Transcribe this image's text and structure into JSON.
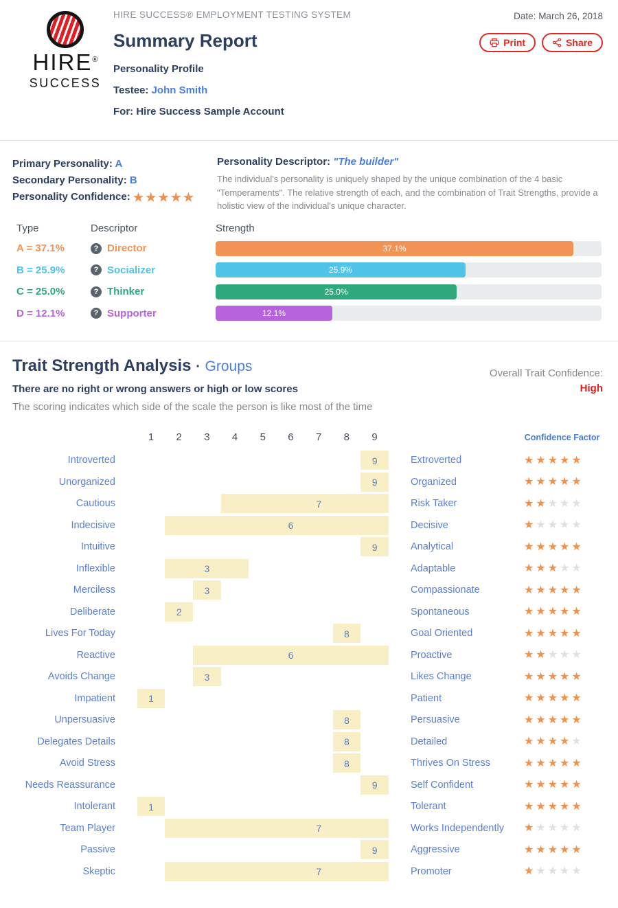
{
  "colors": {
    "accent_red": "#dd2a27",
    "navy_text": "#2d3f5e",
    "link_blue": "#4a7de0",
    "trait_label_blue": "#5a7ed6",
    "star_orange": "#f0914e",
    "star_empty_gray": "#dde1e6",
    "trait_bar_cream": "#f9efc7",
    "type_a_orange": "#f09355",
    "type_b_blue": "#4fc3e8",
    "type_c_green": "#30a87e",
    "type_d_purple": "#b763db"
  },
  "icons": {
    "star_glyph": "★",
    "help_glyph": "?"
  },
  "header": {
    "brand_line": "HIRE SUCCESS® EMPLOYMENT TESTING SYSTEM",
    "title": "Summary Report",
    "subtitle": "Personality Profile",
    "testee_label": "Testee:",
    "testee_name": "John Smith",
    "for_line": "For: Hire Success Sample Account",
    "date_line": "Date: March 26, 2018",
    "print_label": "Print",
    "share_label": "Share",
    "logo_word_top": "HIRE",
    "logo_reg": "®",
    "logo_word_bottom": "SUCCESS"
  },
  "personality": {
    "primary_label": "Primary Personality:",
    "primary_value": "A",
    "secondary_label": "Secondary Personality:",
    "secondary_value": "B",
    "confidence_label": "Personality Confidence:",
    "confidence_stars": 5,
    "descriptor_label": "Personality Descriptor:",
    "descriptor_value": "\"The builder\"",
    "description": "The individual's personality is uniquely shaped by the unique combination of the 4 basic \"Temperaments\". The relative strength of each, and the combination of Trait Strengths, provide a holistic view of the individual's unique character."
  },
  "type_table": {
    "col_type": "Type",
    "col_descriptor": "Descriptor",
    "col_strength": "Strength",
    "axis_max": 40,
    "rows": [
      {
        "type": "A = 37.1%",
        "descriptor": "Director",
        "value": 37.1,
        "label": "37.1%",
        "color": "#f09355"
      },
      {
        "type": "B = 25.9%",
        "descriptor": "Socializer",
        "value": 25.9,
        "label": "25.9%",
        "color": "#4fc3e8"
      },
      {
        "type": "C = 25.0%",
        "descriptor": "Thinker",
        "value": 25.0,
        "label": "25.0%",
        "color": "#30a87e"
      },
      {
        "type": "D = 12.1%",
        "descriptor": "Supporter",
        "value": 12.1,
        "label": "12.1%",
        "color": "#b763db"
      }
    ]
  },
  "trait_analysis": {
    "title": "Trait Strength Analysis",
    "title_sep": "·",
    "groups_link": "Groups",
    "subtitle_bold": "There are no right or wrong answers or high or low scores",
    "subtitle": "The scoring indicates which side of the scale the person is like most of the time",
    "overall_label": "Overall Trait Confidence:",
    "overall_value": "High",
    "confidence_header": "Confidence Factor",
    "scale": [
      1,
      2,
      3,
      4,
      5,
      6,
      7,
      8,
      9
    ],
    "rows": [
      {
        "left": "Introverted",
        "right": "Extroverted",
        "score": 9,
        "range": [
          9,
          9
        ],
        "stars": 5
      },
      {
        "left": "Unorganized",
        "right": "Organized",
        "score": 9,
        "range": [
          9,
          9
        ],
        "stars": 5
      },
      {
        "left": "Cautious",
        "right": "Risk Taker",
        "score": 7,
        "range": [
          4,
          9
        ],
        "stars": 2
      },
      {
        "left": "Indecisive",
        "right": "Decisive",
        "score": 6,
        "range": [
          2,
          9
        ],
        "stars": 1
      },
      {
        "left": "Intuitive",
        "right": "Analytical",
        "score": 9,
        "range": [
          9,
          9
        ],
        "stars": 5
      },
      {
        "left": "Inflexible",
        "right": "Adaptable",
        "score": 3,
        "range": [
          2,
          4
        ],
        "stars": 3
      },
      {
        "left": "Merciless",
        "right": "Compassionate",
        "score": 3,
        "range": [
          3,
          3
        ],
        "stars": 5
      },
      {
        "left": "Deliberate",
        "right": "Spontaneous",
        "score": 2,
        "range": [
          2,
          2
        ],
        "stars": 5
      },
      {
        "left": "Lives For Today",
        "right": "Goal Oriented",
        "score": 8,
        "range": [
          8,
          8
        ],
        "stars": 5
      },
      {
        "left": "Reactive",
        "right": "Proactive",
        "score": 6,
        "range": [
          3,
          9
        ],
        "stars": 2
      },
      {
        "left": "Avoids Change",
        "right": "Likes Change",
        "score": 3,
        "range": [
          3,
          3
        ],
        "stars": 5
      },
      {
        "left": "Impatient",
        "right": "Patient",
        "score": 1,
        "range": [
          1,
          1
        ],
        "stars": 5
      },
      {
        "left": "Unpersuasive",
        "right": "Persuasive",
        "score": 8,
        "range": [
          8,
          8
        ],
        "stars": 5
      },
      {
        "left": "Delegates Details",
        "right": "Detailed",
        "score": 8,
        "range": [
          8,
          8
        ],
        "stars": 4
      },
      {
        "left": "Avoid Stress",
        "right": "Thrives On Stress",
        "score": 8,
        "range": [
          8,
          8
        ],
        "stars": 5
      },
      {
        "left": "Needs Reassurance",
        "right": "Self Confident",
        "score": 9,
        "range": [
          9,
          9
        ],
        "stars": 5
      },
      {
        "left": "Intolerant",
        "right": "Tolerant",
        "score": 1,
        "range": [
          1,
          1
        ],
        "stars": 5
      },
      {
        "left": "Team Player",
        "right": "Works Independently",
        "score": 7,
        "range": [
          2,
          9
        ],
        "stars": 1
      },
      {
        "left": "Passive",
        "right": "Aggressive",
        "score": 9,
        "range": [
          9,
          9
        ],
        "stars": 5
      },
      {
        "left": "Skeptic",
        "right": "Promoter",
        "score": 7,
        "range": [
          2,
          9
        ],
        "stars": 1
      }
    ]
  }
}
